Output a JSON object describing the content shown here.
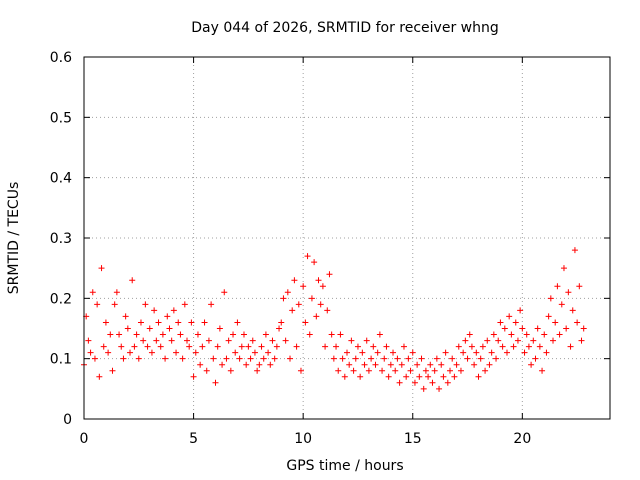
{
  "chart_data": {
    "type": "scatter",
    "title": "Day 044 of 2026, SRMTID for receiver whng",
    "xlabel": "GPS time / hours",
    "ylabel": "SRMTID / TECUs",
    "xlim": [
      0,
      24
    ],
    "ylim": [
      0,
      0.6
    ],
    "xticks": [
      0,
      5,
      10,
      15,
      20
    ],
    "xtick_labels": [
      "0",
      "5",
      "10",
      "15",
      "20"
    ],
    "yticks": [
      0,
      0.1,
      0.2,
      0.3,
      0.4,
      0.5,
      0.6
    ],
    "ytick_labels": [
      "0",
      "0.1",
      "0.2",
      "0.3",
      "0.4",
      "0.5",
      "0.6"
    ],
    "grid": true,
    "marker": "+",
    "color": "#ff0000",
    "series": [
      {
        "name": "SRMTID",
        "x": [
          0.0,
          0.1,
          0.2,
          0.3,
          0.4,
          0.5,
          0.6,
          0.7,
          0.8,
          0.9,
          1.0,
          1.1,
          1.2,
          1.3,
          1.4,
          1.5,
          1.6,
          1.7,
          1.8,
          1.9,
          2.0,
          2.1,
          2.2,
          2.3,
          2.4,
          2.5,
          2.6,
          2.7,
          2.8,
          2.9,
          3.0,
          3.1,
          3.2,
          3.3,
          3.4,
          3.5,
          3.6,
          3.7,
          3.8,
          3.9,
          4.0,
          4.1,
          4.2,
          4.3,
          4.4,
          4.5,
          4.6,
          4.7,
          4.8,
          4.9,
          5.0,
          5.1,
          5.2,
          5.3,
          5.4,
          5.5,
          5.6,
          5.7,
          5.8,
          5.9,
          6.0,
          6.1,
          6.2,
          6.3,
          6.4,
          6.5,
          6.6,
          6.7,
          6.8,
          6.9,
          7.0,
          7.1,
          7.2,
          7.3,
          7.4,
          7.5,
          7.6,
          7.7,
          7.8,
          7.9,
          8.0,
          8.1,
          8.2,
          8.3,
          8.4,
          8.5,
          8.6,
          8.7,
          8.8,
          8.9,
          9.0,
          9.1,
          9.2,
          9.3,
          9.4,
          9.5,
          9.6,
          9.7,
          9.8,
          9.9,
          10.0,
          10.1,
          10.2,
          10.3,
          10.4,
          10.5,
          10.6,
          10.7,
          10.8,
          10.9,
          11.0,
          11.1,
          11.2,
          11.3,
          11.4,
          11.5,
          11.6,
          11.7,
          11.8,
          11.9,
          12.0,
          12.1,
          12.2,
          12.3,
          12.4,
          12.5,
          12.6,
          12.7,
          12.8,
          12.9,
          13.0,
          13.1,
          13.2,
          13.3,
          13.4,
          13.5,
          13.6,
          13.7,
          13.8,
          13.9,
          14.0,
          14.1,
          14.2,
          14.3,
          14.4,
          14.5,
          14.6,
          14.7,
          14.8,
          14.9,
          15.0,
          15.1,
          15.2,
          15.3,
          15.4,
          15.5,
          15.6,
          15.7,
          15.8,
          15.9,
          16.0,
          16.1,
          16.2,
          16.3,
          16.4,
          16.5,
          16.6,
          16.7,
          16.8,
          16.9,
          17.0,
          17.1,
          17.2,
          17.3,
          17.4,
          17.5,
          17.6,
          17.7,
          17.8,
          17.9,
          18.0,
          18.1,
          18.2,
          18.3,
          18.4,
          18.5,
          18.6,
          18.7,
          18.8,
          18.9,
          19.0,
          19.1,
          19.2,
          19.3,
          19.4,
          19.5,
          19.6,
          19.7,
          19.8,
          19.9,
          20.0,
          20.1,
          20.2,
          20.3,
          20.4,
          20.5,
          20.6,
          20.7,
          20.8,
          20.9,
          21.0,
          21.1,
          21.2,
          21.3,
          21.4,
          21.5,
          21.6,
          21.7,
          21.8,
          21.9,
          22.0,
          22.1,
          22.2,
          22.3,
          22.4,
          22.5,
          22.6,
          22.7,
          22.8
        ],
        "y": [
          0.09,
          0.17,
          0.13,
          0.11,
          0.21,
          0.1,
          0.19,
          0.07,
          0.25,
          0.12,
          0.16,
          0.11,
          0.14,
          0.08,
          0.19,
          0.21,
          0.14,
          0.12,
          0.1,
          0.17,
          0.15,
          0.11,
          0.23,
          0.12,
          0.14,
          0.1,
          0.16,
          0.13,
          0.19,
          0.12,
          0.15,
          0.11,
          0.18,
          0.13,
          0.16,
          0.12,
          0.14,
          0.1,
          0.17,
          0.15,
          0.13,
          0.18,
          0.11,
          0.16,
          0.14,
          0.1,
          0.19,
          0.13,
          0.12,
          0.16,
          0.07,
          0.11,
          0.14,
          0.09,
          0.12,
          0.16,
          0.08,
          0.13,
          0.19,
          0.1,
          0.06,
          0.12,
          0.15,
          0.09,
          0.21,
          0.1,
          0.13,
          0.08,
          0.14,
          0.11,
          0.16,
          0.1,
          0.12,
          0.14,
          0.09,
          0.12,
          0.1,
          0.13,
          0.11,
          0.08,
          0.09,
          0.12,
          0.1,
          0.14,
          0.11,
          0.09,
          0.13,
          0.1,
          0.12,
          0.15,
          0.16,
          0.2,
          0.13,
          0.21,
          0.1,
          0.18,
          0.23,
          0.12,
          0.19,
          0.08,
          0.22,
          0.16,
          0.27,
          0.14,
          0.2,
          0.26,
          0.17,
          0.23,
          0.19,
          0.22,
          0.12,
          0.18,
          0.24,
          0.14,
          0.1,
          0.12,
          0.08,
          0.14,
          0.1,
          0.07,
          0.11,
          0.09,
          0.13,
          0.08,
          0.1,
          0.12,
          0.07,
          0.11,
          0.09,
          0.13,
          0.08,
          0.1,
          0.12,
          0.09,
          0.11,
          0.14,
          0.08,
          0.1,
          0.12,
          0.07,
          0.09,
          0.11,
          0.08,
          0.1,
          0.06,
          0.09,
          0.12,
          0.07,
          0.1,
          0.08,
          0.11,
          0.06,
          0.09,
          0.07,
          0.1,
          0.05,
          0.08,
          0.07,
          0.09,
          0.06,
          0.08,
          0.1,
          0.05,
          0.09,
          0.07,
          0.11,
          0.06,
          0.08,
          0.1,
          0.07,
          0.09,
          0.12,
          0.08,
          0.11,
          0.13,
          0.1,
          0.14,
          0.12,
          0.09,
          0.11,
          0.07,
          0.1,
          0.12,
          0.08,
          0.13,
          0.09,
          0.11,
          0.14,
          0.1,
          0.13,
          0.16,
          0.12,
          0.15,
          0.11,
          0.17,
          0.14,
          0.12,
          0.16,
          0.13,
          0.18,
          0.15,
          0.11,
          0.14,
          0.12,
          0.09,
          0.13,
          0.1,
          0.15,
          0.12,
          0.08,
          0.14,
          0.11,
          0.17,
          0.2,
          0.13,
          0.16,
          0.22,
          0.14,
          0.19,
          0.25,
          0.15,
          0.21,
          0.12,
          0.18,
          0.28,
          0.16,
          0.22,
          0.13,
          0.15
        ]
      }
    ]
  }
}
